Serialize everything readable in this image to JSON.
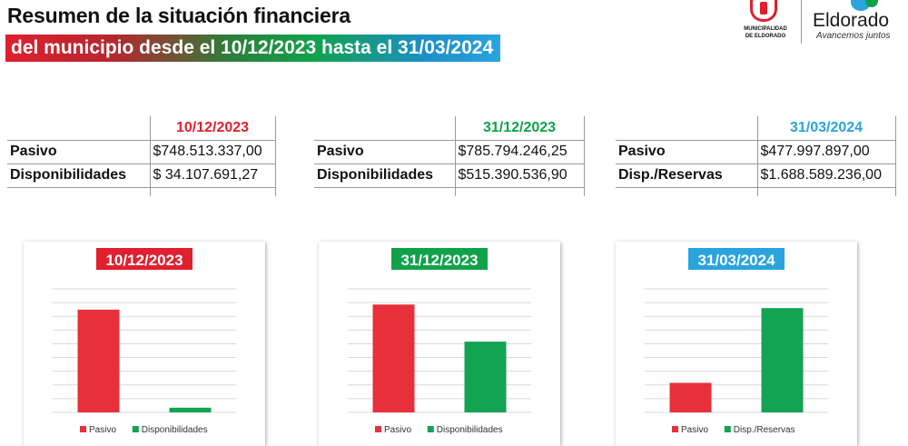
{
  "header": {
    "title": "Resumen de la situación financiera",
    "subtitle": "del municipio desde el 10/12/2023 hasta el 31/03/2024"
  },
  "logos": {
    "municipality": {
      "line1": "MUNICIPALIDAD",
      "line2": "DE ELDORADO"
    },
    "brand": {
      "name": "Eldorado",
      "tagline": "Avancemos juntos"
    }
  },
  "tables": [
    {
      "date": "10/12/2023",
      "date_color": "#e0202e",
      "rows": [
        {
          "label": "Pasivo",
          "value": "$748.513.337,00"
        },
        {
          "label": "Disponibilidades",
          "value": "$ 34.107.691,27"
        }
      ]
    },
    {
      "date": "31/12/2023",
      "date_color": "#10a24a",
      "rows": [
        {
          "label": "Pasivo",
          "value": "$785.794.246,25"
        },
        {
          "label": "Disponibilidades",
          "value": "$515.390.536,90"
        }
      ]
    },
    {
      "date": "31/03/2024",
      "date_color": "#29a4df",
      "rows": [
        {
          "label": "Pasivo",
          "value": "$477.997.897,00"
        },
        {
          "label": "Disp./Reservas",
          "value": "$1.688.589.236,00"
        }
      ]
    }
  ],
  "chart_data": [
    {
      "type": "bar",
      "title": "10/12/2023",
      "title_bg": "#e0202e",
      "categories": [
        "Pasivo",
        "Disponibilidades"
      ],
      "values": [
        748513337.0,
        34107691.27
      ],
      "colors": [
        "#e8303a",
        "#12a353"
      ],
      "ylim": [
        0,
        900000000
      ],
      "grid": true,
      "legend": "bottom"
    },
    {
      "type": "bar",
      "title": "31/12/2023",
      "title_bg": "#10a24a",
      "categories": [
        "Pasivo",
        "Disponibilidades"
      ],
      "values": [
        785794246.25,
        515390536.9
      ],
      "colors": [
        "#e8303a",
        "#12a353"
      ],
      "ylim": [
        0,
        900000000
      ],
      "grid": true,
      "legend": "bottom"
    },
    {
      "type": "bar",
      "title": "31/03/2024",
      "title_bg": "#29a4df",
      "categories": [
        "Pasivo",
        "Disp./Reservas"
      ],
      "values": [
        477997897.0,
        1688589236.0
      ],
      "colors": [
        "#e8303a",
        "#12a353"
      ],
      "ylim": [
        0,
        2000000000
      ],
      "grid": true,
      "legend": "bottom"
    }
  ]
}
